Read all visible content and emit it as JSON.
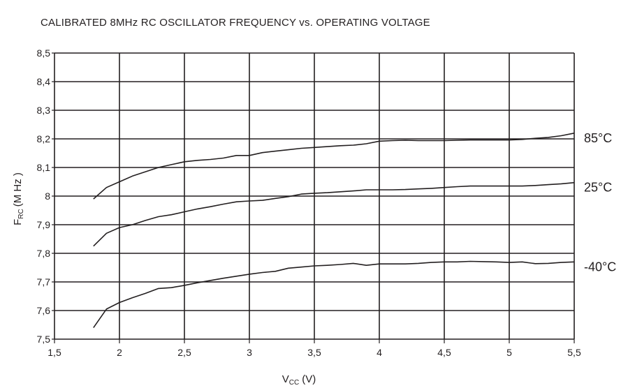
{
  "chart_data": {
    "type": "line",
    "title": "CALIBRATED 8MHz RC OSCILLATOR FREQUENCY vs. OPERATING VOLTAGE",
    "xlabel": {
      "main": "V",
      "sub": "CC",
      "unit": "(V)"
    },
    "ylabel": {
      "main": "F",
      "sub": "RC",
      "unit": "(M Hz )"
    },
    "xlim": [
      1.5,
      5.5
    ],
    "ylim": [
      7.5,
      8.5
    ],
    "x_ticks": [
      "1,5",
      "2",
      "2,5",
      "3",
      "3,5",
      "4",
      "4,5",
      "5",
      "5,5"
    ],
    "y_ticks": [
      "8,5",
      "8,4",
      "8,3",
      "8,2",
      "8,1",
      "8",
      "7,9",
      "7,8",
      "7,7",
      "7,6",
      "7,5"
    ],
    "grid": true,
    "series": [
      {
        "name": "85°C",
        "points": [
          [
            1.8,
            7.99
          ],
          [
            1.9,
            8.03
          ],
          [
            2.0,
            8.05
          ],
          [
            2.1,
            8.07
          ],
          [
            2.2,
            8.085
          ],
          [
            2.3,
            8.1
          ],
          [
            2.4,
            8.11
          ],
          [
            2.5,
            8.12
          ],
          [
            2.6,
            8.125
          ],
          [
            2.7,
            8.128
          ],
          [
            2.8,
            8.133
          ],
          [
            2.9,
            8.142
          ],
          [
            3.0,
            8.142
          ],
          [
            3.1,
            8.152
          ],
          [
            3.2,
            8.157
          ],
          [
            3.3,
            8.162
          ],
          [
            3.4,
            8.167
          ],
          [
            3.5,
            8.17
          ],
          [
            3.6,
            8.173
          ],
          [
            3.7,
            8.176
          ],
          [
            3.8,
            8.178
          ],
          [
            3.9,
            8.183
          ],
          [
            4.0,
            8.192
          ],
          [
            4.1,
            8.194
          ],
          [
            4.2,
            8.195
          ],
          [
            4.3,
            8.194
          ],
          [
            4.4,
            8.194
          ],
          [
            4.5,
            8.194
          ],
          [
            4.6,
            8.195
          ],
          [
            4.7,
            8.196
          ],
          [
            4.8,
            8.196
          ],
          [
            4.9,
            8.196
          ],
          [
            5.0,
            8.196
          ],
          [
            5.1,
            8.198
          ],
          [
            5.2,
            8.202
          ],
          [
            5.3,
            8.205
          ],
          [
            5.4,
            8.211
          ],
          [
            5.5,
            8.22
          ]
        ]
      },
      {
        "name": "25°C",
        "points": [
          [
            1.8,
            7.825
          ],
          [
            1.9,
            7.87
          ],
          [
            2.0,
            7.89
          ],
          [
            2.1,
            7.9
          ],
          [
            2.2,
            7.915
          ],
          [
            2.3,
            7.928
          ],
          [
            2.4,
            7.935
          ],
          [
            2.5,
            7.945
          ],
          [
            2.6,
            7.955
          ],
          [
            2.7,
            7.963
          ],
          [
            2.8,
            7.972
          ],
          [
            2.9,
            7.98
          ],
          [
            3.0,
            7.983
          ],
          [
            3.1,
            7.985
          ],
          [
            3.2,
            7.992
          ],
          [
            3.3,
            7.998
          ],
          [
            3.4,
            8.007
          ],
          [
            3.5,
            8.01
          ],
          [
            3.6,
            8.012
          ],
          [
            3.7,
            8.015
          ],
          [
            3.8,
            8.018
          ],
          [
            3.9,
            8.022
          ],
          [
            4.0,
            8.022
          ],
          [
            4.1,
            8.022
          ],
          [
            4.2,
            8.023
          ],
          [
            4.3,
            8.025
          ],
          [
            4.4,
            8.027
          ],
          [
            4.5,
            8.03
          ],
          [
            4.6,
            8.033
          ],
          [
            4.7,
            8.035
          ],
          [
            4.8,
            8.035
          ],
          [
            4.9,
            8.035
          ],
          [
            5.0,
            8.035
          ],
          [
            5.1,
            8.035
          ],
          [
            5.2,
            8.037
          ],
          [
            5.3,
            8.04
          ],
          [
            5.4,
            8.043
          ],
          [
            5.5,
            8.047
          ]
        ]
      },
      {
        "name": "-40°C",
        "points": [
          [
            1.8,
            7.54
          ],
          [
            1.9,
            7.605
          ],
          [
            2.0,
            7.628
          ],
          [
            2.1,
            7.645
          ],
          [
            2.2,
            7.66
          ],
          [
            2.3,
            7.677
          ],
          [
            2.4,
            7.68
          ],
          [
            2.5,
            7.688
          ],
          [
            2.6,
            7.697
          ],
          [
            2.7,
            7.705
          ],
          [
            2.8,
            7.713
          ],
          [
            2.9,
            7.72
          ],
          [
            3.0,
            7.727
          ],
          [
            3.1,
            7.733
          ],
          [
            3.2,
            7.737
          ],
          [
            3.3,
            7.748
          ],
          [
            3.4,
            7.752
          ],
          [
            3.5,
            7.756
          ],
          [
            3.6,
            7.758
          ],
          [
            3.7,
            7.761
          ],
          [
            3.8,
            7.765
          ],
          [
            3.9,
            7.758
          ],
          [
            4.0,
            7.763
          ],
          [
            4.1,
            7.763
          ],
          [
            4.2,
            7.763
          ],
          [
            4.3,
            7.765
          ],
          [
            4.4,
            7.768
          ],
          [
            4.5,
            7.77
          ],
          [
            4.6,
            7.77
          ],
          [
            4.7,
            7.772
          ],
          [
            4.8,
            7.771
          ],
          [
            4.9,
            7.77
          ],
          [
            5.0,
            7.768
          ],
          [
            5.1,
            7.77
          ],
          [
            5.2,
            7.764
          ],
          [
            5.3,
            7.765
          ],
          [
            5.4,
            7.768
          ],
          [
            5.5,
            7.77
          ]
        ]
      }
    ]
  }
}
